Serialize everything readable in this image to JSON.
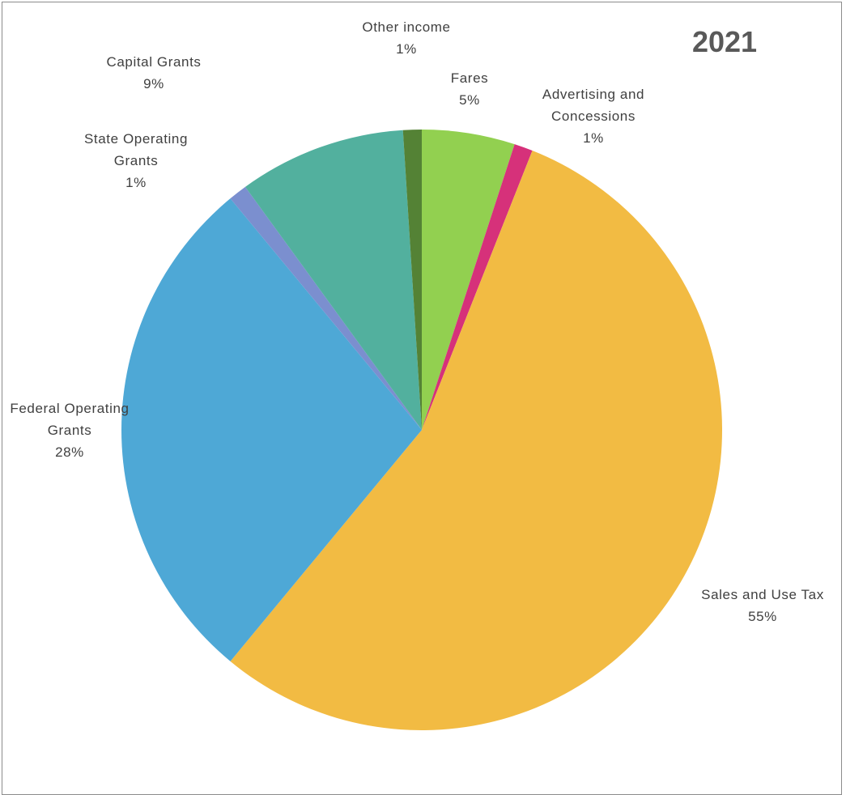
{
  "chart_data": {
    "type": "pie",
    "title": "2021",
    "slices": [
      {
        "label": [
          "Fares"
        ],
        "percent": "5%",
        "value": 5,
        "color": "#92d050"
      },
      {
        "label": [
          "Advertising and",
          "Concessions"
        ],
        "percent": "1%",
        "value": 1,
        "color": "#d6317a"
      },
      {
        "label": [
          "Sales and Use Tax"
        ],
        "percent": "55%",
        "value": 55,
        "color": "#f2bb43"
      },
      {
        "label": [
          "Federal Operating",
          "Grants"
        ],
        "percent": "28%",
        "value": 28,
        "color": "#4ea8d6"
      },
      {
        "label": [
          "State Operating",
          "Grants"
        ],
        "percent": "1%",
        "value": 1,
        "color": "#7b8fcf"
      },
      {
        "label": [
          "Capital Grants"
        ],
        "percent": "9%",
        "value": 9,
        "color": "#52b09e"
      },
      {
        "label": [
          "Other income"
        ],
        "percent": "1%",
        "value": 1,
        "color": "#548235"
      }
    ]
  }
}
